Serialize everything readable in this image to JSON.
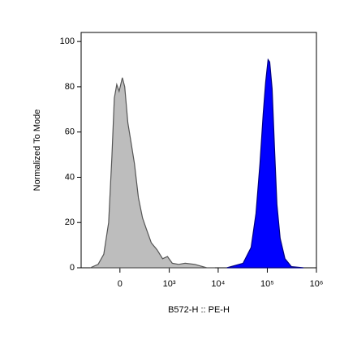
{
  "chart_data": {
    "type": "area",
    "x_label": "B572-H :: PE-H",
    "y_label": "Normalized To Mode",
    "xscale": "biex",
    "xlim": [
      -600,
      1000000
    ],
    "xticks": [
      0,
      {
        "value": 1000,
        "label": "10³"
      },
      {
        "value": 10000,
        "label": "10⁴"
      },
      {
        "value": 100000,
        "label": "10⁵"
      },
      {
        "value": 1000000,
        "label": "10⁶"
      }
    ],
    "ylim": [
      0,
      104
    ],
    "yticks": [
      0,
      20,
      40,
      60,
      80,
      100
    ],
    "series": [
      {
        "color": "#bdbdbd",
        "edge_color": "#555555",
        "x": [
          -378,
          -242,
          -166,
          -111,
          -77,
          -53,
          -30,
          -8,
          23,
          45,
          76,
          111,
          147,
          196,
          254,
          318,
          412,
          550,
          725,
          916,
          1154,
          1564,
          2120,
          3340,
          5880,
          8580
        ],
        "values": [
          0,
          1.5,
          6,
          20,
          49,
          75,
          81,
          78,
          84,
          80,
          64,
          55,
          46,
          31,
          22,
          17,
          11,
          8,
          4,
          5,
          2,
          1.5,
          2,
          1.5,
          0,
          0
        ]
      },
      {
        "color": "#0000ff",
        "edge_color": "#000080",
        "x": [
          15100,
          22000,
          32100,
          46900,
          58800,
          71000,
          82600,
          92500,
          103600,
          111800,
          125200,
          140000,
          156900,
          182500,
          229000,
          309700,
          545000
        ],
        "values": [
          0,
          1,
          2,
          9,
          24,
          46,
          68,
          82,
          92,
          91,
          79,
          53,
          28,
          13,
          4,
          0.5,
          0
        ]
      }
    ]
  }
}
